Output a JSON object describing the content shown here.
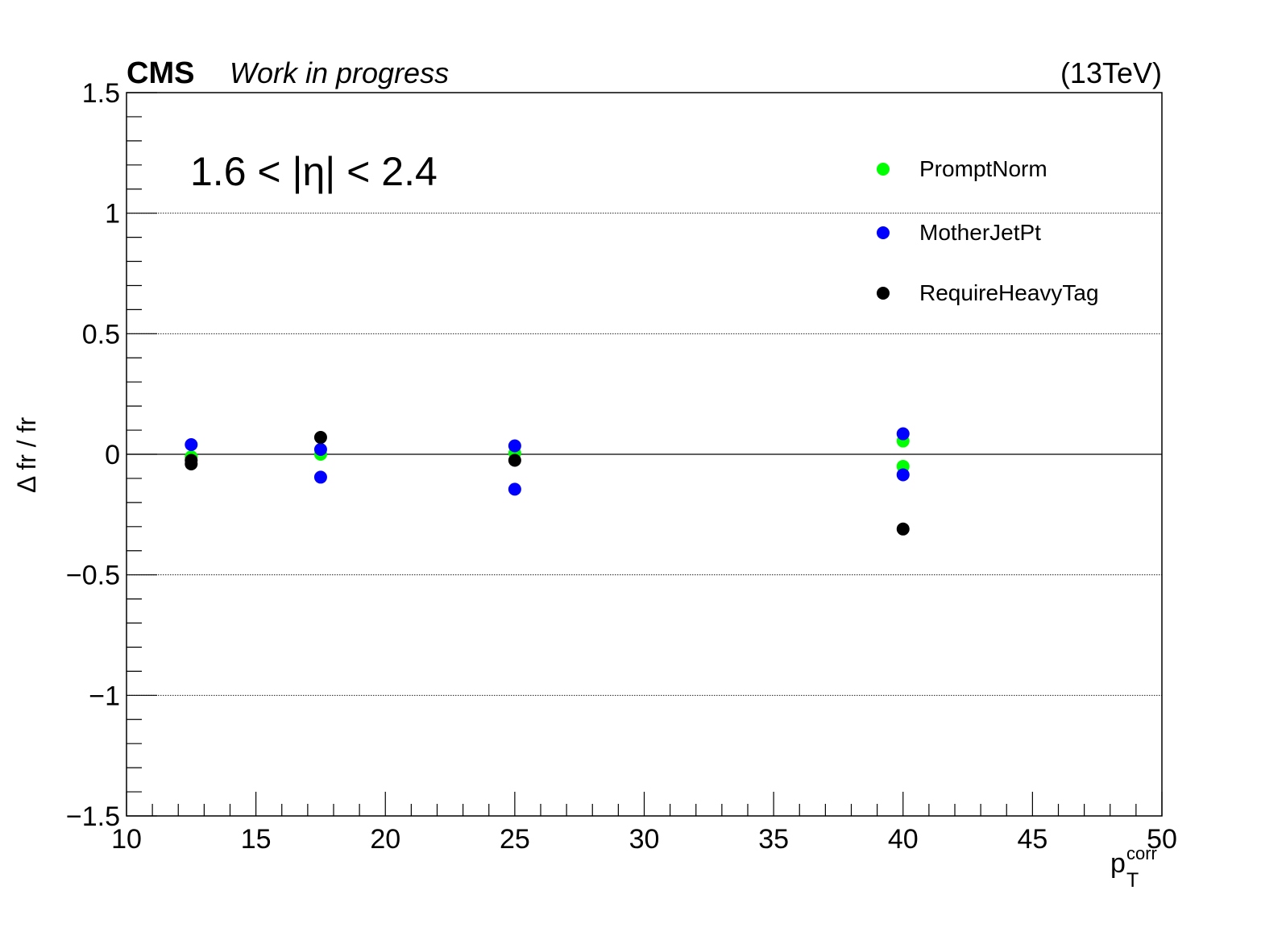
{
  "chart_data": {
    "type": "scatter",
    "header": {
      "experiment": "CMS",
      "status": "Work in progress",
      "energy": "(13TeV)"
    },
    "annotation": "1.6 < |η| < 2.4",
    "ylabel": "Δ fr / fr",
    "xlabel": {
      "base": "p",
      "sub": "T",
      "sup": "corr"
    },
    "xlim": [
      10,
      50
    ],
    "ylim": [
      -1.5,
      1.5
    ],
    "xticks": [
      10,
      15,
      20,
      25,
      30,
      35,
      40,
      45,
      50
    ],
    "xtick_labels": [
      "10",
      "15",
      "20",
      "25",
      "30",
      "35",
      "40",
      "45",
      "50"
    ],
    "yticks": [
      -1.5,
      -1,
      -0.5,
      0,
      0.5,
      1,
      1.5
    ],
    "ytick_labels": [
      "−1.5",
      "−1",
      "−0.5",
      "0",
      "0.5",
      "1",
      "1.5"
    ],
    "grid": {
      "y": true,
      "x": false
    },
    "legend_position": "top-right",
    "series": [
      {
        "name": "PromptNorm",
        "color": "#00ff00",
        "points": [
          {
            "x": 12.5,
            "y": -0.01
          },
          {
            "x": 17.5,
            "y": 0.0
          },
          {
            "x": 25,
            "y": 0.005
          },
          {
            "x": 40,
            "y": 0.055
          },
          {
            "x": 40,
            "y": -0.05
          }
        ]
      },
      {
        "name": "MotherJetPt",
        "color": "#0000ff",
        "points": [
          {
            "x": 12.5,
            "y": 0.04
          },
          {
            "x": 17.5,
            "y": 0.02
          },
          {
            "x": 17.5,
            "y": -0.095
          },
          {
            "x": 25,
            "y": 0.035
          },
          {
            "x": 25,
            "y": -0.145
          },
          {
            "x": 40,
            "y": 0.085
          },
          {
            "x": 40,
            "y": -0.085
          }
        ]
      },
      {
        "name": "RequireHeavyTag",
        "color": "#000000",
        "points": [
          {
            "x": 12.5,
            "y": -0.025
          },
          {
            "x": 12.5,
            "y": -0.04
          },
          {
            "x": 17.5,
            "y": 0.07
          },
          {
            "x": 25,
            "y": -0.025
          },
          {
            "x": 40,
            "y": -0.31
          }
        ]
      }
    ]
  }
}
